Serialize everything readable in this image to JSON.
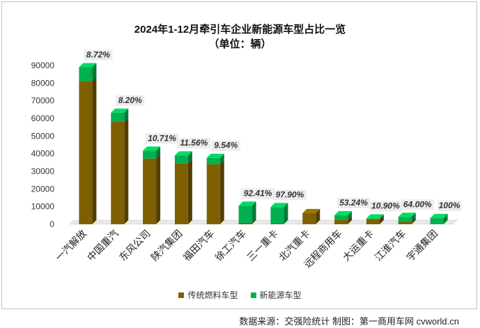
{
  "chart_data": {
    "type": "bar",
    "stacked": true,
    "title": "2024年1-12月牵引车企业新能源车型占比一览",
    "subtitle": "（单位：辆）",
    "categories": [
      "一汽解放",
      "中国重汽",
      "东风公司",
      "陕汽集团",
      "福田汽车",
      "徐工汽车",
      "三一重卡",
      "北汽重卡",
      "远程商用车",
      "大运重卡",
      "江淮汽车",
      "宇通集团"
    ],
    "series": [
      {
        "name": "传统燃料车型",
        "color": "#7f6000",
        "values": [
          81200,
          58000,
          37200,
          34500,
          34000,
          800,
          200,
          6300,
          2400,
          2900,
          1500,
          0
        ]
      },
      {
        "name": "新能源车型",
        "color": "#00b050",
        "values": [
          7800,
          5200,
          4500,
          4500,
          3600,
          9700,
          9500,
          0,
          2700,
          400,
          2700,
          3500
        ]
      }
    ],
    "share_labels": [
      "8.72%",
      "8.20%",
      "10.71%",
      "11.56%",
      "9.54%",
      "92.41%",
      "97.90%",
      "",
      "53.24%",
      "10.90%",
      "64.00%",
      "100%"
    ],
    "ylim": [
      0,
      90000
    ],
    "yticks": [
      0,
      10000,
      20000,
      30000,
      40000,
      50000,
      60000,
      70000,
      80000,
      90000
    ],
    "grid": false,
    "legend_position": "bottom"
  },
  "source_text": "数据来源：交强险统计    制图：第一商用车网 cvworld.cn"
}
